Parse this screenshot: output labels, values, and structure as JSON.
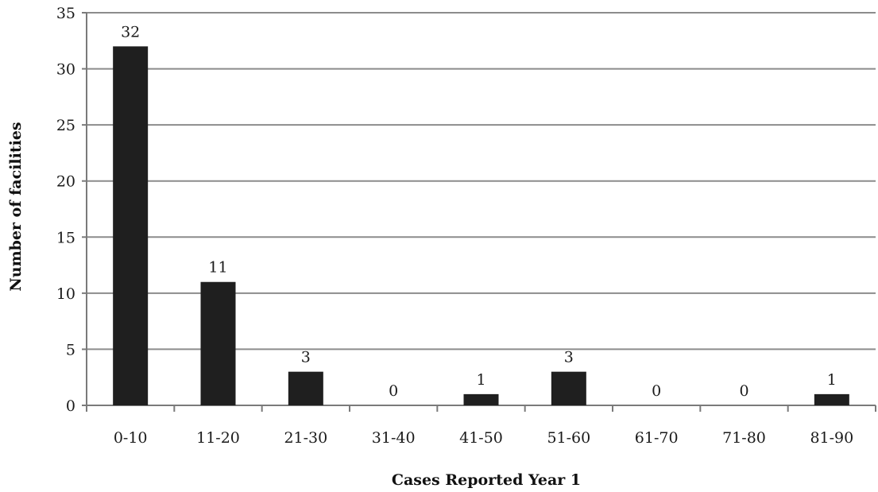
{
  "chart_data": {
    "type": "bar",
    "categories": [
      "0-10",
      "11-20",
      "21-30",
      "31-40",
      "41-50",
      "51-60",
      "61-70",
      "71-80",
      "81-90"
    ],
    "values": [
      32,
      11,
      3,
      0,
      1,
      3,
      0,
      0,
      1
    ],
    "data_labels": [
      "32",
      "11",
      "3",
      "0",
      "1",
      "3",
      "0",
      "0",
      "1"
    ],
    "title": "",
    "xlabel": "Cases Reported Year 1",
    "ylabel": "Number of facilities",
    "ylim": [
      0,
      35
    ],
    "yticks": [
      0,
      5,
      10,
      15,
      20,
      25,
      30,
      35
    ],
    "ytick_labels": [
      "0",
      "5",
      "10",
      "15",
      "20",
      "25",
      "30",
      "35"
    ],
    "grid": true,
    "legend": false,
    "colors": {
      "bar": "#1f1f1f",
      "grid": "#8c8c8c",
      "axis": "#7a7a7a"
    }
  }
}
